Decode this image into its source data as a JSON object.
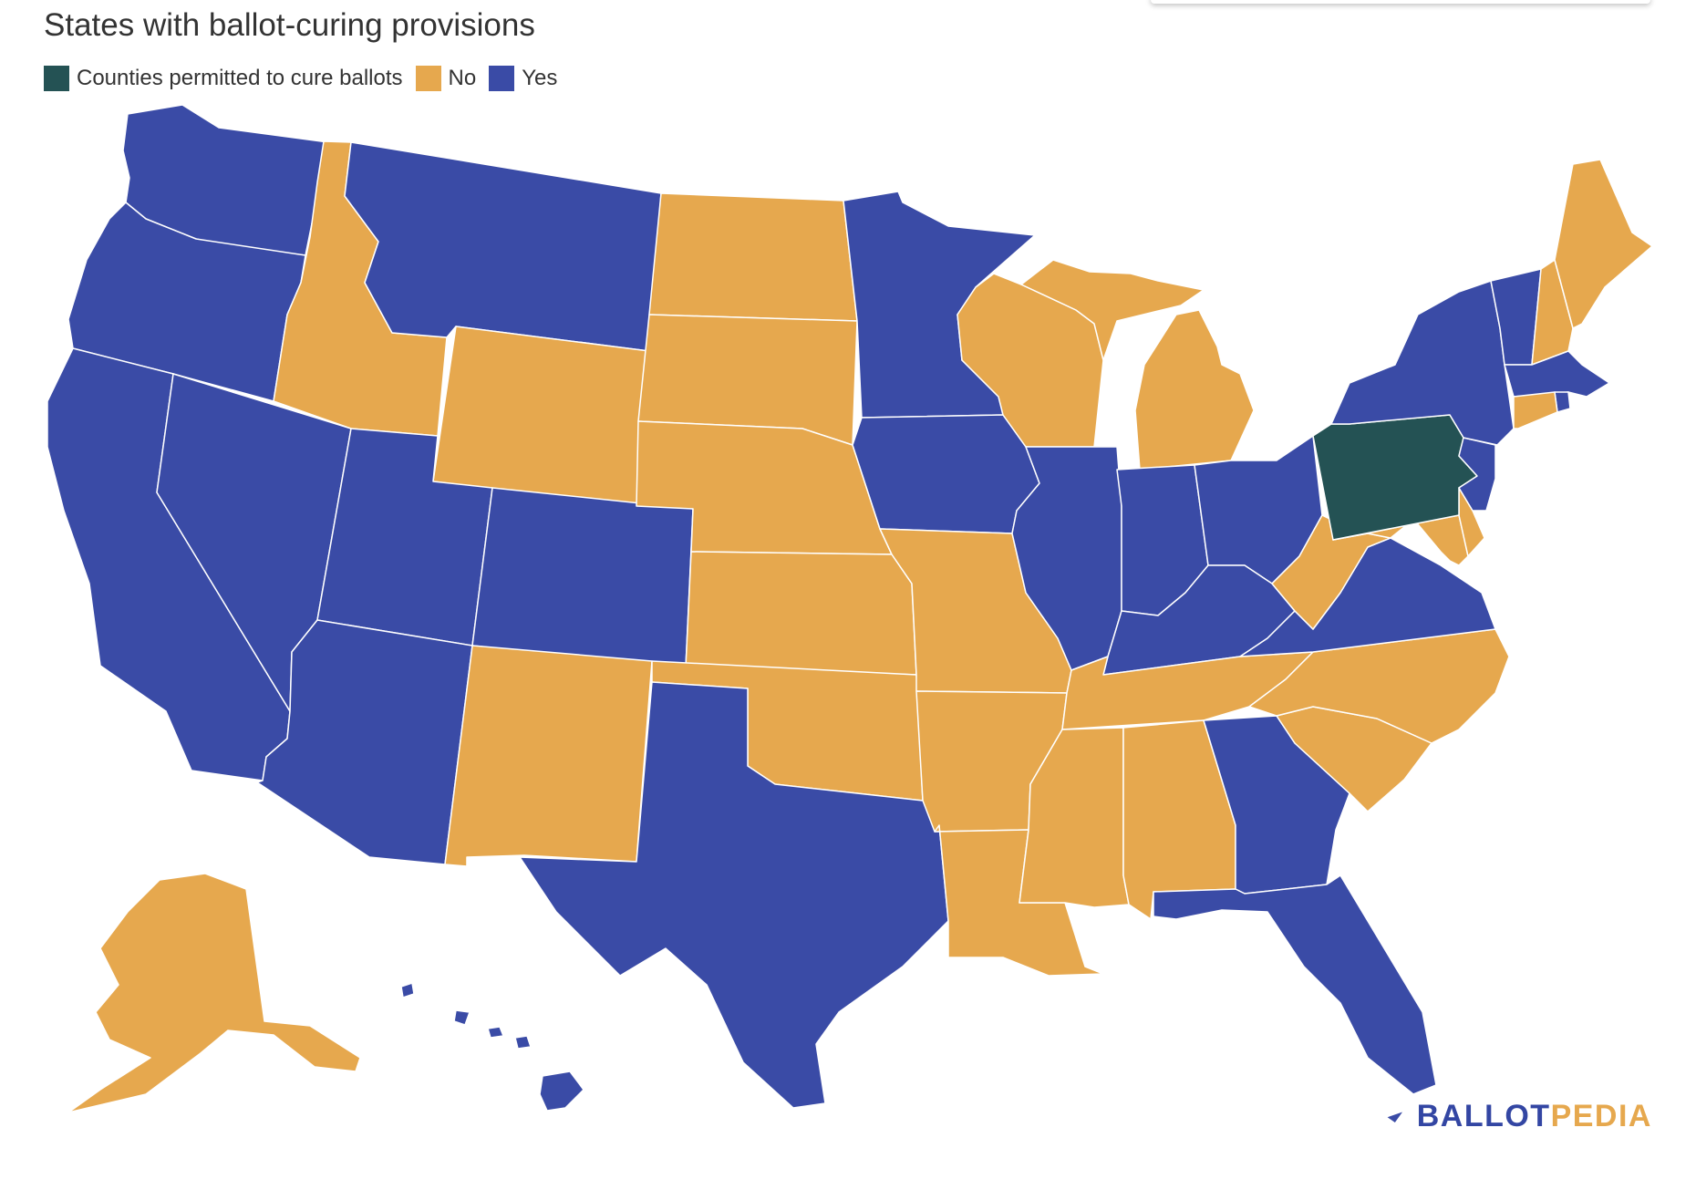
{
  "title": "States with ballot-curing provisions",
  "legend": [
    {
      "key": "counties",
      "label": "Counties permitted to cure ballots",
      "color": "#245254"
    },
    {
      "key": "no",
      "label": "No",
      "color": "#e6a84e"
    },
    {
      "key": "yes",
      "label": "Yes",
      "color": "#3a4ba6"
    }
  ],
  "logo": {
    "part1": "BALLOT",
    "part2": "PEDIA"
  },
  "states": [
    {
      "code": "WA",
      "cat": "yes"
    },
    {
      "code": "OR",
      "cat": "yes"
    },
    {
      "code": "CA",
      "cat": "yes"
    },
    {
      "code": "NV",
      "cat": "yes"
    },
    {
      "code": "MT",
      "cat": "yes"
    },
    {
      "code": "UT",
      "cat": "yes"
    },
    {
      "code": "AZ",
      "cat": "yes"
    },
    {
      "code": "CO",
      "cat": "yes"
    },
    {
      "code": "TX",
      "cat": "yes"
    },
    {
      "code": "MN",
      "cat": "yes"
    },
    {
      "code": "IA",
      "cat": "yes"
    },
    {
      "code": "IL",
      "cat": "yes"
    },
    {
      "code": "IN",
      "cat": "yes"
    },
    {
      "code": "OH",
      "cat": "yes"
    },
    {
      "code": "KY",
      "cat": "yes"
    },
    {
      "code": "VA",
      "cat": "yes"
    },
    {
      "code": "GA",
      "cat": "yes"
    },
    {
      "code": "FL",
      "cat": "yes"
    },
    {
      "code": "NY",
      "cat": "yes"
    },
    {
      "code": "VT",
      "cat": "yes"
    },
    {
      "code": "MA",
      "cat": "yes"
    },
    {
      "code": "RI",
      "cat": "yes"
    },
    {
      "code": "NJ",
      "cat": "yes"
    },
    {
      "code": "HI",
      "cat": "yes"
    },
    {
      "code": "ID",
      "cat": "no"
    },
    {
      "code": "WY",
      "cat": "no"
    },
    {
      "code": "ND",
      "cat": "no"
    },
    {
      "code": "SD",
      "cat": "no"
    },
    {
      "code": "NE",
      "cat": "no"
    },
    {
      "code": "KS",
      "cat": "no"
    },
    {
      "code": "OK",
      "cat": "no"
    },
    {
      "code": "NM",
      "cat": "no"
    },
    {
      "code": "MO",
      "cat": "no"
    },
    {
      "code": "AR",
      "cat": "no"
    },
    {
      "code": "LA",
      "cat": "no"
    },
    {
      "code": "MS",
      "cat": "no"
    },
    {
      "code": "AL",
      "cat": "no"
    },
    {
      "code": "TN",
      "cat": "no"
    },
    {
      "code": "NC",
      "cat": "no"
    },
    {
      "code": "SC",
      "cat": "no"
    },
    {
      "code": "WV",
      "cat": "no"
    },
    {
      "code": "MD",
      "cat": "no"
    },
    {
      "code": "DE",
      "cat": "no"
    },
    {
      "code": "CT",
      "cat": "no"
    },
    {
      "code": "NH",
      "cat": "no"
    },
    {
      "code": "ME",
      "cat": "no"
    },
    {
      "code": "MI",
      "cat": "no"
    },
    {
      "code": "WI",
      "cat": "no"
    },
    {
      "code": "AK",
      "cat": "no"
    },
    {
      "code": "PA",
      "cat": "counties"
    }
  ]
}
